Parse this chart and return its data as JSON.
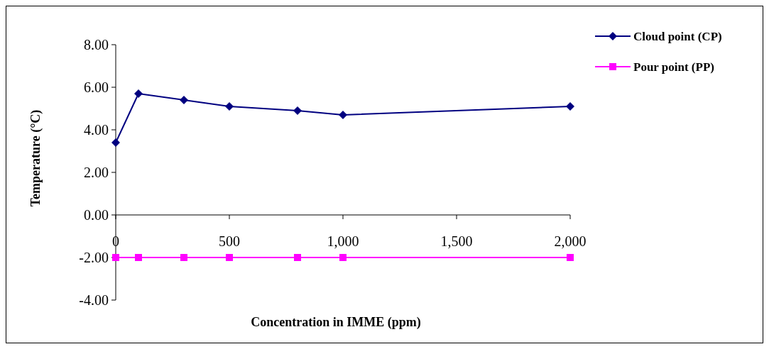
{
  "chart_data": {
    "type": "line",
    "xlabel": "Concentration in IMME (ppm)",
    "ylabel": "Temperature (°C)",
    "x": [
      0,
      100,
      300,
      500,
      800,
      1000,
      2000
    ],
    "series": [
      {
        "name": "Cloud point (CP)",
        "color": "#000080",
        "marker": "diamond",
        "values": [
          3.4,
          5.7,
          5.4,
          5.1,
          4.9,
          4.7,
          5.1
        ]
      },
      {
        "name": "Pour point (PP)",
        "color": "#ff00ff",
        "marker": "square",
        "values": [
          -2.0,
          -2.0,
          -2.0,
          -2.0,
          -2.0,
          -2.0,
          -2.0
        ]
      }
    ],
    "xlim": [
      0,
      2000
    ],
    "xticks": [
      {
        "value": 0,
        "label": "0"
      },
      {
        "value": 500,
        "label": "500"
      },
      {
        "value": 1000,
        "label": "1,000"
      },
      {
        "value": 1500,
        "label": "1,500"
      },
      {
        "value": 2000,
        "label": "2,000"
      }
    ],
    "ylim": [
      -4,
      8
    ],
    "yticks": [
      {
        "value": -4,
        "label": "-4.00"
      },
      {
        "value": -2,
        "label": "-2.00"
      },
      {
        "value": 0,
        "label": "0.00"
      },
      {
        "value": 2,
        "label": "2.00"
      },
      {
        "value": 4,
        "label": "4.00"
      },
      {
        "value": 6,
        "label": "6.00"
      },
      {
        "value": 8,
        "label": "8.00"
      }
    ],
    "grid": false,
    "legend": "right"
  }
}
